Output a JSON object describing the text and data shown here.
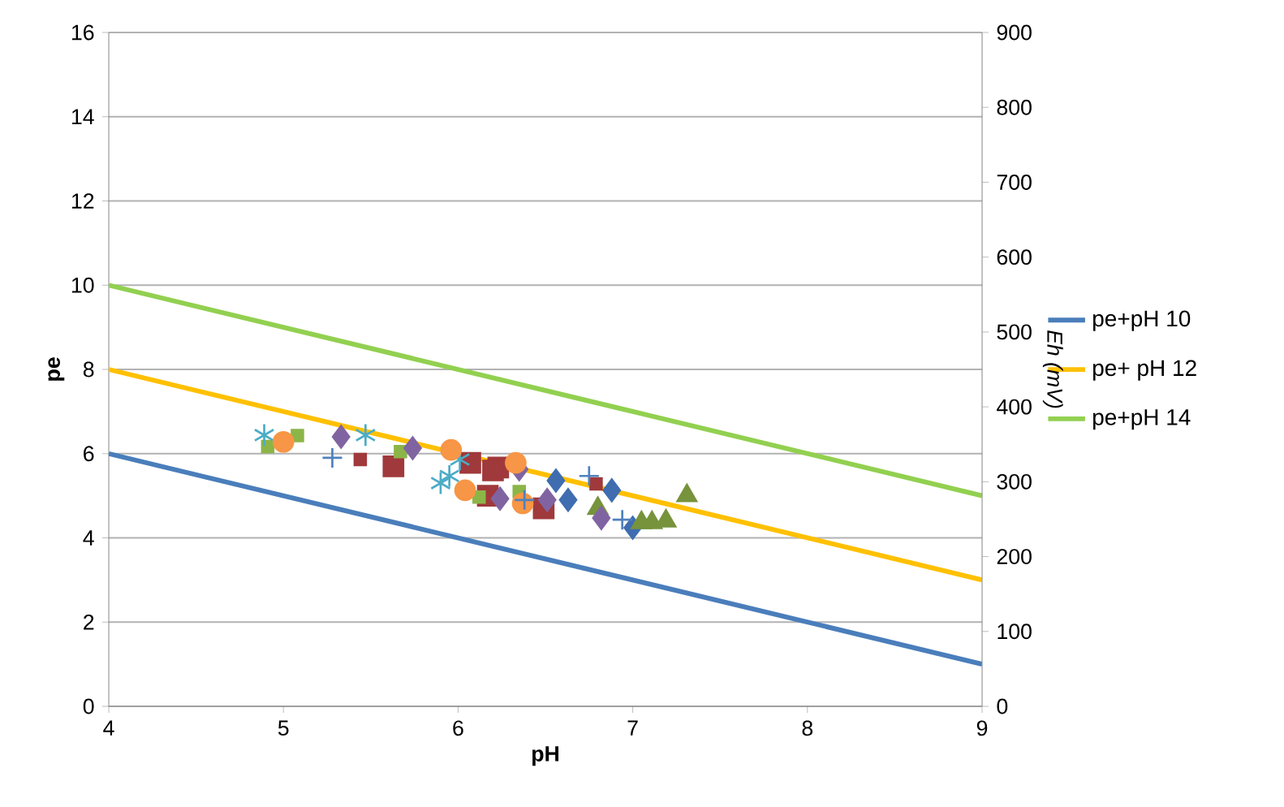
{
  "chart_data": {
    "type": "line",
    "xlabel": "pH",
    "ylabel": "pe",
    "y2label": "*Eh (mV)*",
    "xlim": [
      4,
      9
    ],
    "xticks": [
      4,
      5,
      6,
      7,
      8,
      9
    ],
    "ylim": [
      0,
      16
    ],
    "yticks": [
      0,
      2,
      4,
      6,
      8,
      10,
      12,
      14,
      16
    ],
    "y2lim": [
      0,
      900
    ],
    "y2ticks": [
      0,
      100,
      200,
      300,
      400,
      500,
      600,
      700,
      800,
      900
    ],
    "grid": "y",
    "legend": "right",
    "series": [
      {
        "name": "pe+pH 10",
        "color": "#4a7ebb",
        "x": [
          4,
          9
        ],
        "values": [
          6,
          1
        ]
      },
      {
        "name": "pe+ pH 12",
        "color": "#ffc000",
        "x": [
          4,
          9
        ],
        "values": [
          8,
          3
        ]
      },
      {
        "name": "pe+pH 14",
        "color": "#92d050",
        "x": [
          4,
          9
        ],
        "values": [
          10,
          5
        ]
      },
      {
        "type": "scatter",
        "marker": "diamond",
        "color": "#3f6db0",
        "x": [
          6.56,
          6.63,
          6.88,
          7.0
        ],
        "values": [
          5.36,
          4.9,
          5.13,
          4.24
        ]
      },
      {
        "type": "scatter",
        "marker": "square",
        "color": "#a0393b",
        "x": [
          5.63,
          6.07,
          6.23,
          6.17,
          6.2,
          6.49
        ],
        "values": [
          5.7,
          5.78,
          5.67,
          5.0,
          5.6,
          4.7
        ]
      },
      {
        "type": "scatter",
        "marker": "square",
        "color": "#a0393b",
        "x": [
          5.44,
          6.79
        ],
        "values": [
          5.86,
          5.28
        ]
      },
      {
        "type": "scatter",
        "marker": "triangle",
        "color": "#77933c",
        "x": [
          7.31,
          7.05,
          7.11,
          7.19,
          6.8
        ],
        "values": [
          5.0,
          4.36,
          4.36,
          4.4,
          4.7
        ]
      },
      {
        "type": "scatter",
        "marker": "square",
        "color": "#8cb548",
        "x": [
          4.91,
          5.08,
          5.67,
          6.12,
          6.35
        ],
        "values": [
          6.17,
          6.43,
          6.05,
          4.97,
          5.1
        ]
      },
      {
        "type": "scatter",
        "marker": "diamond",
        "color": "#8064a2",
        "x": [
          5.33,
          5.74,
          6.24,
          6.35,
          6.51,
          6.82
        ],
        "values": [
          6.4,
          6.13,
          4.93,
          5.63,
          4.9,
          4.47
        ]
      },
      {
        "type": "scatter",
        "color": "#4bacc6",
        "x": [
          4.89,
          5.47,
          5.95,
          6.01,
          5.9
        ],
        "values": [
          6.44,
          6.44,
          5.47,
          5.86,
          5.3
        ]
      },
      {
        "type": "scatter",
        "marker": "circle",
        "color": "#f79646",
        "x": [
          5.0,
          5.96,
          6.04,
          6.33,
          6.37
        ],
        "values": [
          6.28,
          6.09,
          5.13,
          5.78,
          4.82
        ]
      },
      {
        "type": "scatter",
        "marker": "cross",
        "color": "#4f81bd",
        "x": [
          5.28,
          6.75,
          6.94,
          6.38
        ],
        "values": [
          5.9,
          5.47,
          4.43,
          4.9
        ]
      }
    ]
  }
}
